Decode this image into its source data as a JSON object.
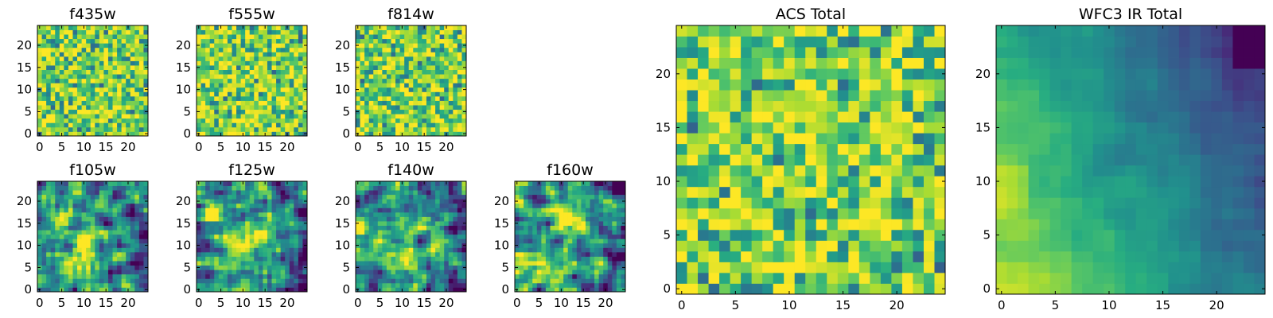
{
  "colormap": "viridis",
  "chart_data": [
    {
      "type": "heatmap",
      "title": "f435w",
      "xlim": [
        -0.5,
        24.5
      ],
      "ylim": [
        -0.5,
        24.5
      ],
      "xticks": [
        0,
        5,
        10,
        15,
        20
      ],
      "yticks": [
        0,
        5,
        10,
        15,
        20
      ],
      "pattern": "noise",
      "seed": 11
    },
    {
      "type": "heatmap",
      "title": "f555w",
      "xlim": [
        -0.5,
        24.5
      ],
      "ylim": [
        -0.5,
        24.5
      ],
      "xticks": [
        0,
        5,
        10,
        15,
        20
      ],
      "yticks": [
        0,
        5,
        10,
        15,
        20
      ],
      "pattern": "noise",
      "seed": 23
    },
    {
      "type": "heatmap",
      "title": "f814w",
      "xlim": [
        -0.5,
        24.5
      ],
      "ylim": [
        -0.5,
        24.5
      ],
      "xticks": [
        0,
        5,
        10,
        15,
        20
      ],
      "yticks": [
        0,
        5,
        10,
        15,
        20
      ],
      "pattern": "noise",
      "seed": 37
    },
    {
      "type": "heatmap",
      "title": "f105w",
      "xlim": [
        -0.5,
        24.5
      ],
      "ylim": [
        -0.5,
        24.5
      ],
      "xticks": [
        0,
        5,
        10,
        15,
        20
      ],
      "yticks": [
        0,
        5,
        10,
        15,
        20
      ],
      "pattern": "smooth",
      "seed": 41
    },
    {
      "type": "heatmap",
      "title": "f125w",
      "xlim": [
        -0.5,
        24.5
      ],
      "ylim": [
        -0.5,
        24.5
      ],
      "xticks": [
        0,
        5,
        10,
        15,
        20
      ],
      "yticks": [
        0,
        5,
        10,
        15,
        20
      ],
      "pattern": "smooth",
      "seed": 53
    },
    {
      "type": "heatmap",
      "title": "f140w",
      "xlim": [
        -0.5,
        24.5
      ],
      "ylim": [
        -0.5,
        24.5
      ],
      "xticks": [
        0,
        5,
        10,
        15,
        20
      ],
      "yticks": [
        0,
        5,
        10,
        15,
        20
      ],
      "pattern": "smooth",
      "seed": 67
    },
    {
      "type": "heatmap",
      "title": "f160w",
      "xlim": [
        -0.5,
        24.5
      ],
      "ylim": [
        -0.5,
        24.5
      ],
      "xticks": [
        0,
        5,
        10,
        15,
        20
      ],
      "yticks": [
        0,
        5,
        10,
        15,
        20
      ],
      "pattern": "smooth",
      "seed": 79
    },
    {
      "type": "heatmap",
      "title": "ACS Total",
      "xlim": [
        -0.5,
        24.5
      ],
      "ylim": [
        -0.5,
        24.5
      ],
      "xticks": [
        0,
        5,
        10,
        15,
        20
      ],
      "yticks": [
        0,
        5,
        10,
        15,
        20
      ],
      "pattern": "noise",
      "seed": 97
    },
    {
      "type": "heatmap",
      "title": "WFC3 IR Total",
      "xlim": [
        -0.5,
        24.5
      ],
      "ylim": [
        -0.5,
        24.5
      ],
      "xticks": [
        0,
        5,
        10,
        15,
        20
      ],
      "yticks": [
        0,
        5,
        10,
        15,
        20
      ],
      "pattern": "gradient",
      "seed": 101
    }
  ]
}
